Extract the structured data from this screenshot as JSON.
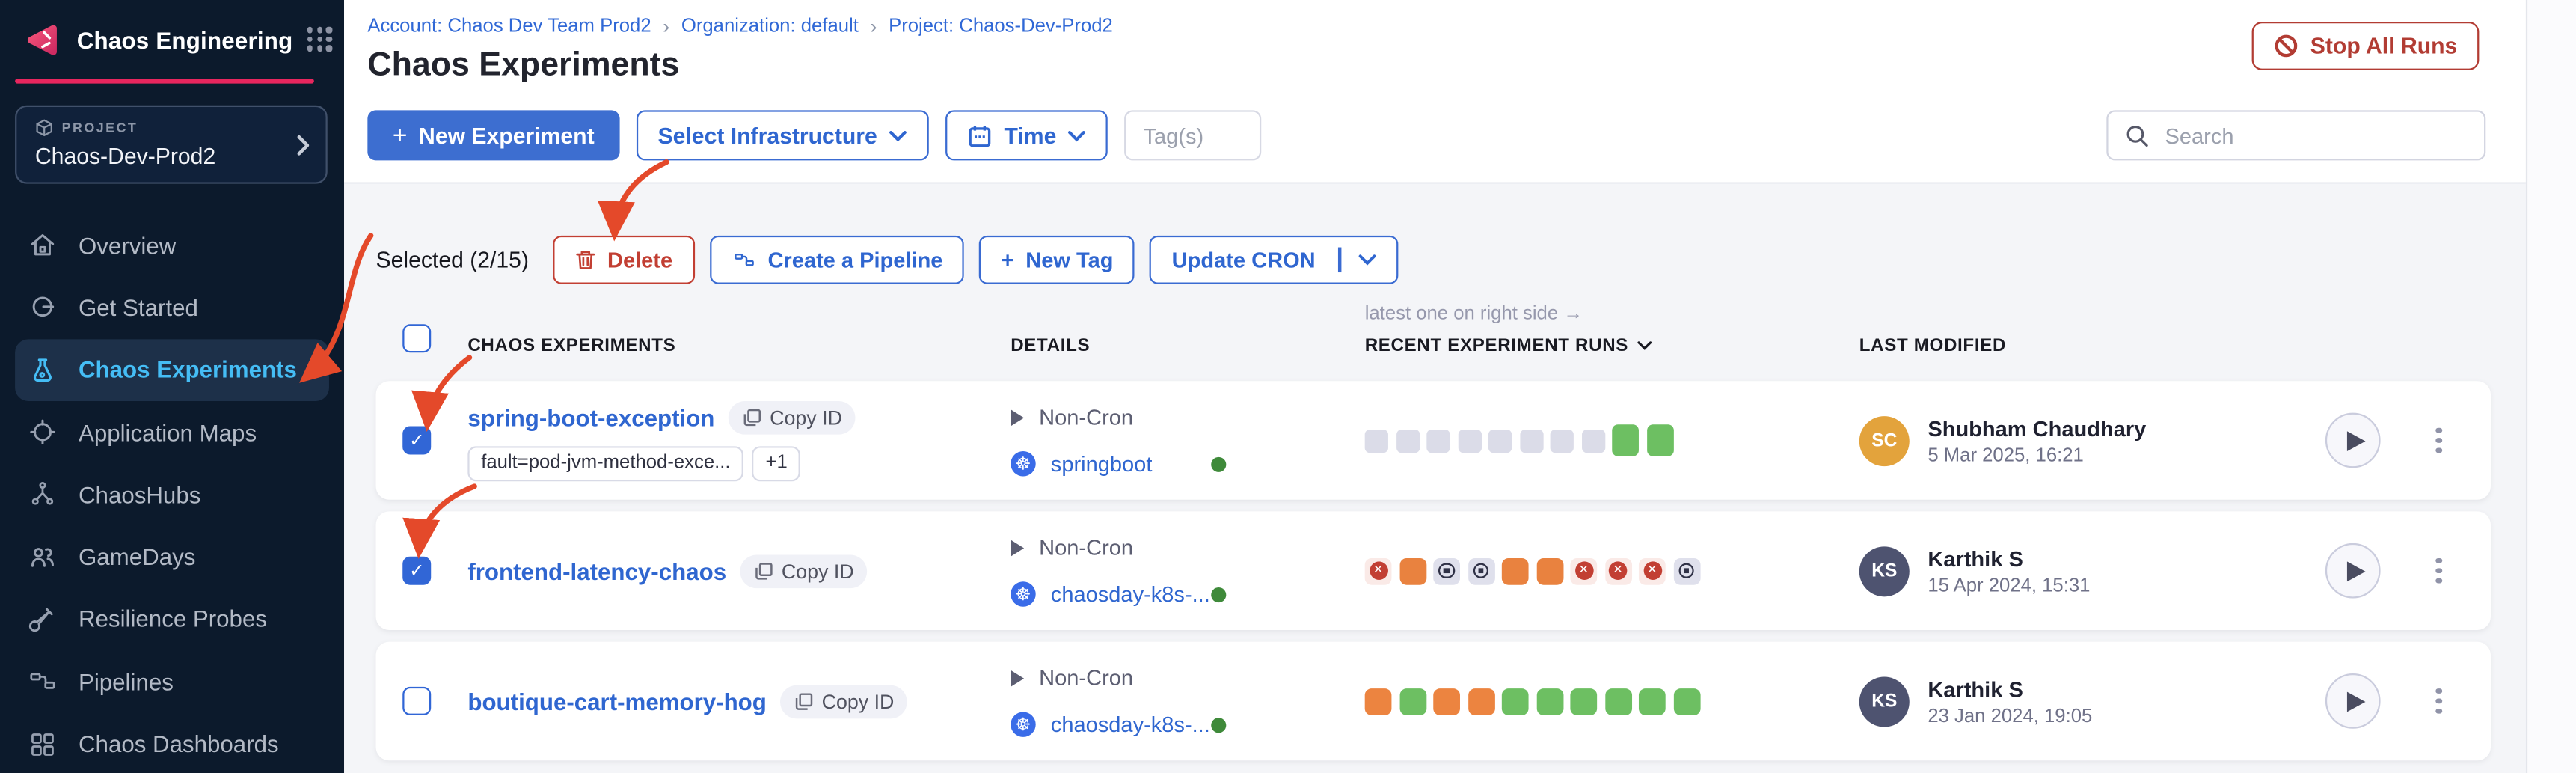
{
  "app": {
    "title": "Chaos Engineering"
  },
  "sidebar": {
    "project_label": "PROJECT",
    "project_name": "Chaos-Dev-Prod2",
    "items": [
      {
        "label": "Overview"
      },
      {
        "label": "Get Started"
      },
      {
        "label": "Chaos Experiments",
        "active": true
      },
      {
        "label": "Application Maps"
      },
      {
        "label": "ChaosHubs"
      },
      {
        "label": "GameDays"
      },
      {
        "label": "Resilience Probes"
      },
      {
        "label": "Pipelines"
      },
      {
        "label": "Chaos Dashboards"
      }
    ]
  },
  "breadcrumb": {
    "account": "Account: Chaos Dev Team Prod2",
    "separator": "›",
    "organization": "Organization: default",
    "project": "Project: Chaos-Dev-Prod2"
  },
  "header": {
    "title": "Chaos Experiments",
    "stop_all_runs": "Stop All Runs"
  },
  "toolbar": {
    "plus": "+",
    "new_experiment": "New Experiment",
    "select_infrastructure": "Select Infrastructure",
    "time": "Time",
    "tags_placeholder": "Tag(s)",
    "search_placeholder": "Search"
  },
  "bulk": {
    "selected": "Selected (2/15)",
    "delete": "Delete",
    "create_pipeline": "Create a Pipeline",
    "new_tag": "New Tag",
    "update_cron": "Update CRON"
  },
  "table": {
    "runs_note": "latest one on right side →",
    "columns": {
      "experiments": "CHAOS EXPERIMENTS",
      "details": "DETAILS",
      "runs": "RECENT EXPERIMENT RUNS",
      "modified": "LAST MODIFIED"
    },
    "rows": [
      {
        "name": "spring-boot-exception",
        "copy_id": "Copy ID",
        "checked": true,
        "tags": [
          "fault=pod-jvm-method-exce...",
          "+1"
        ],
        "cron": "Non-Cron",
        "infra": "springboot",
        "runs": [
          "empty",
          "empty",
          "empty",
          "empty",
          "empty",
          "empty",
          "empty",
          "empty",
          "success",
          "success"
        ],
        "modified": {
          "initials": "SC",
          "name": "Shubham Chaudhary",
          "date": "5 Mar 2025, 16:21",
          "avatar_color": "#e3a33c"
        }
      },
      {
        "name": "frontend-latency-chaos",
        "copy_id": "Copy ID",
        "checked": true,
        "tags": [],
        "cron": "Non-Cron",
        "infra": "chaosday-k8s-...",
        "runs": [
          "failed",
          "running",
          "stopped",
          "stopped",
          "running",
          "running",
          "failed",
          "failed",
          "failed",
          "stopped"
        ],
        "modified": {
          "initials": "KS",
          "name": "Karthik S",
          "date": "15 Apr 2024, 15:31",
          "avatar_color": "#4e5370"
        }
      },
      {
        "name": "boutique-cart-memory-hog",
        "copy_id": "Copy ID",
        "checked": false,
        "tags": [],
        "cron": "Non-Cron",
        "infra": "chaosday-k8s-...",
        "runs": [
          "orange",
          "green",
          "orange",
          "orange",
          "green",
          "green",
          "green",
          "green",
          "green",
          "green"
        ],
        "modified": {
          "initials": "KS",
          "name": "Karthik S",
          "date": "23 Jan 2024, 19:05",
          "avatar_color": "#4e5370"
        }
      }
    ]
  },
  "colors": {
    "accent_pink": "#e8265e",
    "primary_blue": "#3d6ed0",
    "link_blue": "#2f66d0",
    "active_nav_blue": "#45bdf5",
    "danger_red": "#c23f33",
    "stop_runs_red": "#b23c33",
    "annotation_red": "#e4492a",
    "run_gray": "#dbdce8",
    "run_green": "#6dbf62",
    "run_orange": "#e9823f",
    "status_dot_green": "#3f8a3a",
    "avatar_yellow": "#e3a33c",
    "avatar_slate": "#4e5370"
  }
}
